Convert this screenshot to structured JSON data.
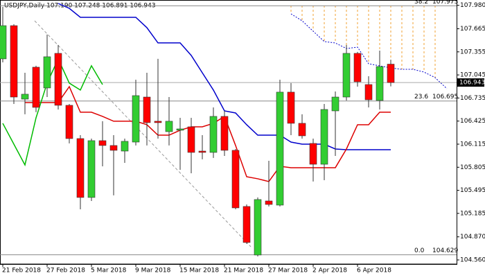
{
  "chart_data": {
    "type": "candlestick",
    "title": "USDJPY,Daily  107.190 107.248 106.891 106.943",
    "categories": [
      "21 Feb 2018",
      null,
      null,
      null,
      "27 Feb 2018",
      null,
      null,
      null,
      "5 Mar 2018",
      null,
      null,
      null,
      "9 Mar 2018",
      null,
      null,
      null,
      "15 Mar 2018",
      null,
      null,
      null,
      "21 Mar 2018",
      null,
      null,
      null,
      "27 Mar 2018",
      null,
      null,
      null,
      "2 Apr 2018",
      null,
      null,
      null,
      "6 Apr 2018",
      null,
      null,
      null
    ],
    "open": [
      107.261,
      107.707,
      106.72,
      107.149,
      106.87,
      107.335,
      106.637,
      106.19,
      105.399,
      106.162,
      106.097,
      106.022,
      106.143,
      106.748,
      106.423,
      106.283,
      106.302,
      106.348,
      106.022,
      106.004,
      106.488,
      106.032,
      105.278,
      104.626,
      105.352,
      105.296,
      106.814,
      106.395,
      106.125,
      105.845,
      106.562,
      106.748,
      107.335,
      106.916,
      106.702,
      107.19
    ],
    "high": [
      107.959,
      107.726,
      107.074,
      107.168,
      107.587,
      107.447,
      106.655,
      106.236,
      106.19,
      106.423,
      106.236,
      106.19,
      106.981,
      107.074,
      107.261,
      106.748,
      106.469,
      106.469,
      106.236,
      106.609,
      106.562,
      106.05,
      105.305,
      105.399,
      105.892,
      106.981,
      106.935,
      106.516,
      106.19,
      106.655,
      106.823,
      107.447,
      107.354,
      107.028,
      107.372,
      107.248
    ],
    "low": [
      107.214,
      106.655,
      106.516,
      106.544,
      106.748,
      106.581,
      106.125,
      105.24,
      105.352,
      105.817,
      105.427,
      105.864,
      106.097,
      106.097,
      106.19,
      106.097,
      105.771,
      105.724,
      105.911,
      105.93,
      105.957,
      105.24,
      104.775,
      104.607,
      105.278,
      105.278,
      106.236,
      106.19,
      105.613,
      105.631,
      105.957,
      106.702,
      106.888,
      106.609,
      106.581,
      106.891
    ],
    "close": [
      107.707,
      106.748,
      106.786,
      106.609,
      107.289,
      106.637,
      106.19,
      105.399,
      106.162,
      106.097,
      106.032,
      106.153,
      106.767,
      106.404,
      106.404,
      106.423,
      106.32,
      106.004,
      106.004,
      106.488,
      106.032,
      105.259,
      104.794,
      105.371,
      105.305,
      106.814,
      106.395,
      106.227,
      105.845,
      106.581,
      106.748,
      107.335,
      106.953,
      106.711,
      107.158,
      106.943
    ],
    "up_color": "#32cd32",
    "down_color": "#ff0000",
    "lines": [
      {
        "color": "#0000cc",
        "values": [
          null,
          null,
          null,
          null,
          null,
          108.005,
          107.94,
          107.819,
          107.819,
          107.819,
          107.819,
          107.819,
          107.819,
          107.68,
          107.475,
          107.475,
          107.475,
          107.307,
          107.074,
          106.842,
          106.562,
          106.534,
          106.376,
          106.236,
          106.236,
          106.236,
          106.143,
          106.115,
          106.115,
          106.115,
          106.05,
          106.041,
          106.041,
          106.041,
          106.041,
          106.041
        ]
      },
      {
        "color": "#dd0000",
        "values": [
          null,
          null,
          106.674,
          106.674,
          106.674,
          106.674,
          106.888,
          106.544,
          106.544,
          106.488,
          106.423,
          106.423,
          106.423,
          106.376,
          106.236,
          106.236,
          106.302,
          106.348,
          106.348,
          106.395,
          106.488,
          106.097,
          105.678,
          105.65,
          105.613,
          105.818,
          105.799,
          105.799,
          105.799,
          105.799,
          105.799,
          106.05,
          106.376,
          106.376,
          106.544,
          106.544
        ]
      },
      {
        "color": "#00bb00",
        "values": [
          106.395,
          106.115,
          105.836,
          106.469,
          106.935,
          107.261,
          106.935,
          106.842,
          107.168,
          106.916,
          null,
          null,
          null,
          null,
          null,
          null,
          null,
          null,
          null,
          null,
          null,
          null,
          null,
          null,
          null,
          null,
          null,
          null,
          null,
          null,
          null,
          null,
          null,
          null,
          null,
          null
        ]
      }
    ],
    "ylim": [
      104.374,
      108.005
    ],
    "yticks": [
      {
        "value": 107.98,
        "label": "107.980"
      },
      107.665,
      107.355,
      107.045,
      106.735,
      106.425,
      106.115,
      105.805,
      105.495,
      105.185,
      {
        "value": 104.87,
        "label": "104.870"
      },
      {
        "value": 104.56,
        "label": "104.560"
      }
    ],
    "current_price": {
      "value": 106.943,
      "label": "106.943"
    },
    "fib_levels": [
      {
        "level": "38.2",
        "value": 107.973,
        "label": "107.973"
      },
      {
        "level": "23.6",
        "value": 106.695,
        "label": "106.695"
      },
      {
        "level": "0.0",
        "value": 104.629,
        "label": "104.629"
      }
    ]
  }
}
